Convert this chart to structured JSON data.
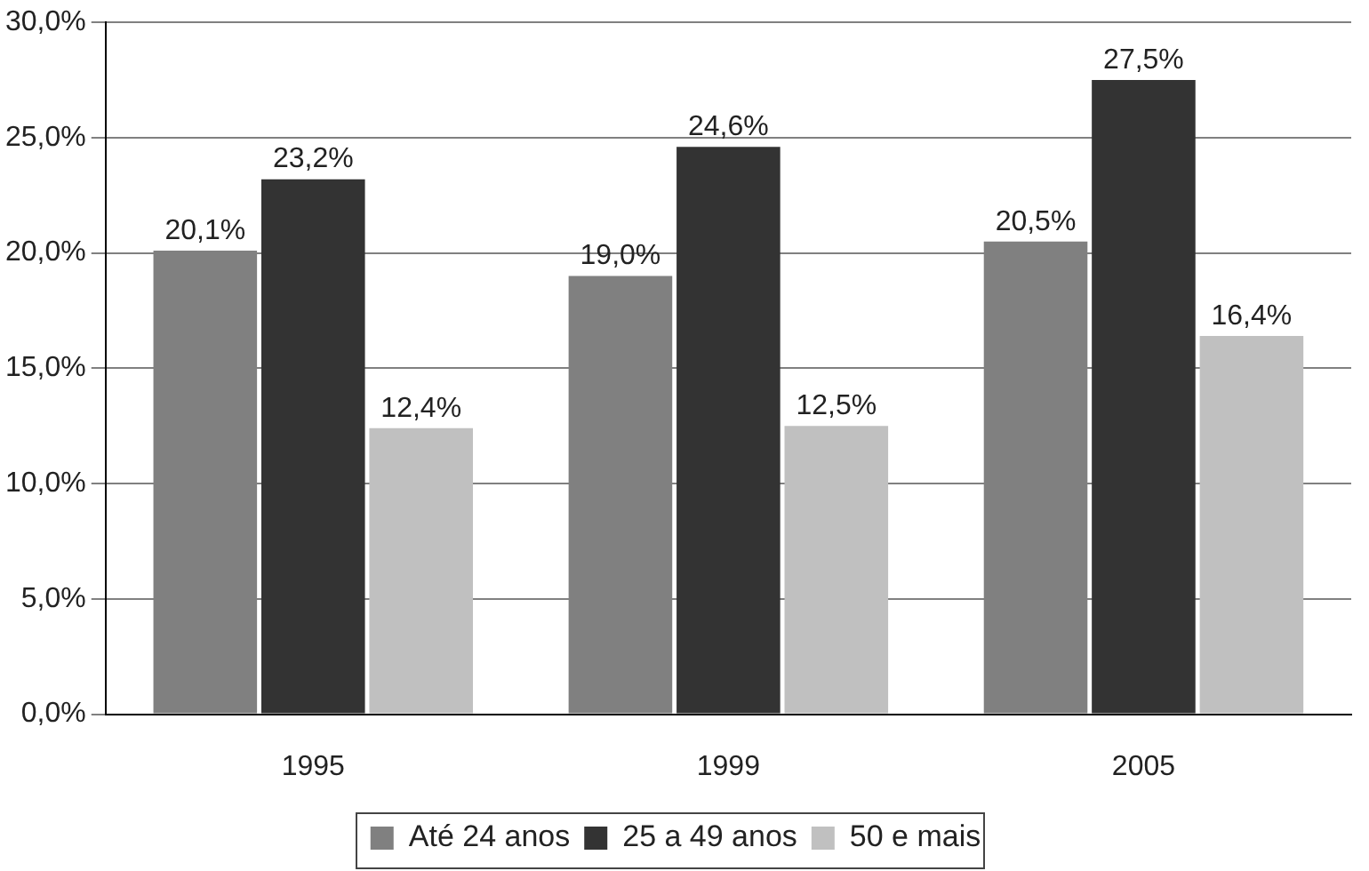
{
  "chart_data": {
    "type": "bar",
    "categories": [
      "1995",
      "1999",
      "2005"
    ],
    "series": [
      {
        "name": "Até 24 anos",
        "color": "#808080",
        "values": [
          20.1,
          19.0,
          20.5
        ],
        "value_labels": [
          "20,1%",
          "19,0%",
          "20,5%"
        ]
      },
      {
        "name": "25 a 49 anos",
        "color": "#333333",
        "values": [
          23.2,
          24.6,
          27.5
        ],
        "value_labels": [
          "23,2%",
          "24,6%",
          "27,5%"
        ]
      },
      {
        "name": "50 e mais",
        "color": "#c0c0c0",
        "values": [
          12.4,
          12.5,
          16.4
        ],
        "value_labels": [
          "12,4%",
          "12,5%",
          "16,4%"
        ]
      }
    ],
    "ylim": [
      0,
      30
    ],
    "yticks": [
      {
        "value": 0,
        "label": "0,0%"
      },
      {
        "value": 5,
        "label": "5,0%"
      },
      {
        "value": 10,
        "label": "10,0%"
      },
      {
        "value": 15,
        "label": "15,0%"
      },
      {
        "value": 20,
        "label": "20,0%"
      },
      {
        "value": 25,
        "label": "25,0%"
      },
      {
        "value": 30,
        "label": "30,0%"
      }
    ],
    "grid": "y",
    "legend": "bottom"
  }
}
